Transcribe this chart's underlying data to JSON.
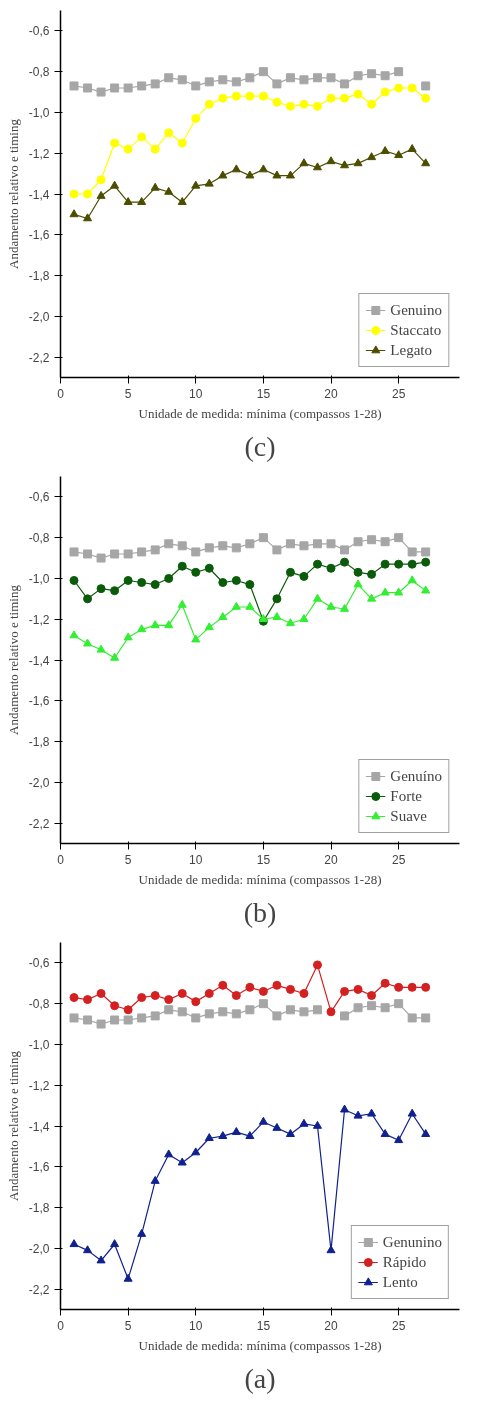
{
  "chart_data": [
    {
      "type": "line",
      "title": "(c)",
      "xlabel": "Unidade de medida: mínima (compassos 1-28)",
      "ylabel": "Andamento relativo e timing",
      "x": [
        1,
        2,
        3,
        4,
        5,
        6,
        7,
        8,
        9,
        10,
        11,
        12,
        13,
        14,
        15,
        16,
        17,
        18,
        19,
        20,
        21,
        22,
        23,
        24,
        25,
        26,
        27
      ],
      "xlim": [
        0,
        29.5
      ],
      "xticks": [
        0,
        5,
        10,
        15,
        20,
        25
      ],
      "ylim": [
        -2.3,
        -0.5
      ],
      "yticks": [
        {
          "value": -2.2,
          "label": "-2,2"
        },
        {
          "value": -2.0,
          "label": "-2,0"
        },
        {
          "value": -1.8,
          "label": "-1,8"
        },
        {
          "value": -1.6,
          "label": "-1,6"
        },
        {
          "value": -1.4,
          "label": "-1,4"
        },
        {
          "value": -1.2,
          "label": "-1,2"
        },
        {
          "value": -1.0,
          "label": "-1,0"
        },
        {
          "value": -0.8,
          "label": "-0,8"
        },
        {
          "value": -0.6,
          "label": "-0,6"
        }
      ],
      "legend": "bottom right",
      "series": [
        {
          "name": "Genuino",
          "color": "#a6a6a6",
          "marker": "square",
          "values": [
            -0.87,
            -0.88,
            -0.9,
            -0.88,
            -0.88,
            -0.87,
            -0.86,
            -0.83,
            -0.84,
            -0.87,
            -0.85,
            -0.84,
            -0.85,
            -0.83,
            -0.8,
            -0.86,
            -0.83,
            -0.84,
            -0.83,
            -0.83,
            -0.86,
            -0.82,
            -0.81,
            -0.82,
            -0.8,
            null,
            -0.87
          ]
        },
        {
          "name": "Staccato",
          "color": "#ffff00",
          "marker": "circle",
          "values": [
            -1.4,
            -1.4,
            -1.33,
            -1.15,
            -1.18,
            -1.12,
            -1.18,
            -1.1,
            -1.15,
            -1.03,
            -0.96,
            -0.93,
            -0.92,
            -0.92,
            -0.92,
            -0.95,
            -0.97,
            -0.96,
            -0.97,
            -0.93,
            -0.93,
            -0.91,
            -0.96,
            -0.9,
            -0.88,
            -0.88,
            -0.93
          ]
        },
        {
          "name": "Legato",
          "color": "#4d4d00",
          "marker": "triangle",
          "values": [
            -1.5,
            -1.52,
            -1.41,
            -1.36,
            -1.44,
            -1.44,
            -1.37,
            -1.39,
            -1.44,
            -1.36,
            -1.35,
            -1.31,
            -1.28,
            -1.31,
            -1.28,
            -1.31,
            -1.31,
            -1.25,
            -1.27,
            -1.24,
            -1.26,
            -1.25,
            -1.22,
            -1.19,
            -1.21,
            -1.18,
            -1.25
          ]
        }
      ]
    },
    {
      "type": "line",
      "title": "(b)",
      "xlabel": "Unidade de medida: mínima (compassos 1-28)",
      "ylabel": "Andamento relativo e timing",
      "x": [
        1,
        2,
        3,
        4,
        5,
        6,
        7,
        8,
        9,
        10,
        11,
        12,
        13,
        14,
        15,
        16,
        17,
        18,
        19,
        20,
        21,
        22,
        23,
        24,
        25,
        26,
        27
      ],
      "xlim": [
        0,
        29.5
      ],
      "xticks": [
        0,
        5,
        10,
        15,
        20,
        25
      ],
      "ylim": [
        -2.3,
        -0.5
      ],
      "yticks": [
        {
          "value": -2.2,
          "label": "-2,2"
        },
        {
          "value": -2.0,
          "label": "-2,0"
        },
        {
          "value": -1.8,
          "label": "-1,8"
        },
        {
          "value": -1.6,
          "label": "-1,6"
        },
        {
          "value": -1.4,
          "label": "-1,4"
        },
        {
          "value": -1.2,
          "label": "-1,2"
        },
        {
          "value": -1.0,
          "label": "-1,0"
        },
        {
          "value": -0.8,
          "label": "-0,8"
        },
        {
          "value": -0.6,
          "label": "-0,6"
        }
      ],
      "legend": "bottom right",
      "series": [
        {
          "name": "Genuíno",
          "color": "#a6a6a6",
          "marker": "square",
          "values": [
            -0.87,
            -0.88,
            -0.9,
            -0.88,
            -0.88,
            -0.87,
            -0.86,
            -0.83,
            -0.84,
            -0.87,
            -0.85,
            -0.84,
            -0.85,
            -0.83,
            -0.8,
            -0.86,
            -0.83,
            -0.84,
            -0.83,
            -0.83,
            -0.86,
            -0.82,
            -0.81,
            -0.82,
            -0.8,
            -0.87,
            -0.87
          ]
        },
        {
          "name": "Forte",
          "color": "#0a5c0a",
          "marker": "circle",
          "values": [
            -1.01,
            -1.1,
            -1.05,
            -1.06,
            -1.01,
            -1.02,
            -1.03,
            -1.0,
            -0.94,
            -0.97,
            -0.95,
            -1.02,
            -1.01,
            -1.03,
            -1.21,
            -1.1,
            -0.97,
            -0.99,
            -0.93,
            -0.95,
            -0.92,
            -0.97,
            -0.98,
            -0.93,
            -0.93,
            -0.93,
            -0.92
          ]
        },
        {
          "name": "Suave",
          "color": "#33ee33",
          "marker": "triangle",
          "values": [
            -1.28,
            -1.32,
            -1.35,
            -1.39,
            -1.29,
            -1.25,
            -1.23,
            -1.23,
            -1.13,
            -1.3,
            -1.24,
            -1.19,
            -1.14,
            -1.14,
            -1.2,
            -1.19,
            -1.22,
            -1.2,
            -1.1,
            -1.14,
            -1.15,
            -1.03,
            -1.1,
            -1.07,
            -1.07,
            -1.01,
            -1.06
          ]
        }
      ]
    },
    {
      "type": "line",
      "title": "(a)",
      "xlabel": "Unidade de medida: mínima (compassos 1-28)",
      "ylabel": "Andamento relativo e timing",
      "x": [
        1,
        2,
        3,
        4,
        5,
        6,
        7,
        8,
        9,
        10,
        11,
        12,
        13,
        14,
        15,
        16,
        17,
        18,
        19,
        20,
        21,
        22,
        23,
        24,
        25,
        26,
        27
      ],
      "xlim": [
        0,
        29.5
      ],
      "xticks": [
        0,
        5,
        10,
        15,
        20,
        25
      ],
      "ylim": [
        -2.3,
        -0.5
      ],
      "yticks": [
        {
          "value": -2.2,
          "label": "-2,2"
        },
        {
          "value": -2.0,
          "label": "-2,0"
        },
        {
          "value": -1.8,
          "label": "-1,8"
        },
        {
          "value": -1.6,
          "label": "-1,6"
        },
        {
          "value": -1.4,
          "label": "-1,4"
        },
        {
          "value": -1.2,
          "label": "-1,2"
        },
        {
          "value": -1.0,
          "label": "-1,0"
        },
        {
          "value": -0.8,
          "label": "-0,8"
        },
        {
          "value": -0.6,
          "label": "-0,6"
        }
      ],
      "legend": "bottom right",
      "series": [
        {
          "name": "Genunino",
          "color": "#a6a6a6",
          "marker": "square",
          "values": [
            -0.87,
            -0.88,
            -0.9,
            -0.88,
            -0.88,
            -0.87,
            -0.86,
            -0.83,
            -0.84,
            -0.87,
            -0.85,
            -0.84,
            -0.85,
            -0.83,
            -0.8,
            -0.86,
            -0.83,
            -0.84,
            -0.83,
            null,
            -0.86,
            -0.82,
            -0.81,
            -0.82,
            -0.8,
            -0.87,
            -0.87
          ]
        },
        {
          "name": "Rápido",
          "color": "#d42020",
          "marker": "circle",
          "values": [
            -0.77,
            -0.78,
            -0.75,
            -0.81,
            -0.83,
            -0.77,
            -0.76,
            -0.78,
            -0.75,
            -0.79,
            -0.75,
            -0.71,
            -0.76,
            -0.72,
            -0.74,
            -0.71,
            -0.73,
            -0.75,
            -0.61,
            -0.84,
            -0.74,
            -0.73,
            -0.76,
            -0.7,
            -0.72,
            -0.72,
            -0.72
          ]
        },
        {
          "name": "Lento",
          "color": "#10208f",
          "marker": "triangle",
          "values": [
            -1.98,
            -2.01,
            -2.06,
            -1.98,
            -2.15,
            -1.93,
            -1.67,
            -1.54,
            -1.58,
            -1.53,
            -1.46,
            -1.45,
            -1.43,
            -1.45,
            -1.38,
            -1.41,
            -1.44,
            -1.39,
            -1.4,
            -2.01,
            -1.32,
            -1.35,
            -1.34,
            -1.44,
            -1.47,
            -1.34,
            -1.44
          ]
        }
      ]
    }
  ]
}
